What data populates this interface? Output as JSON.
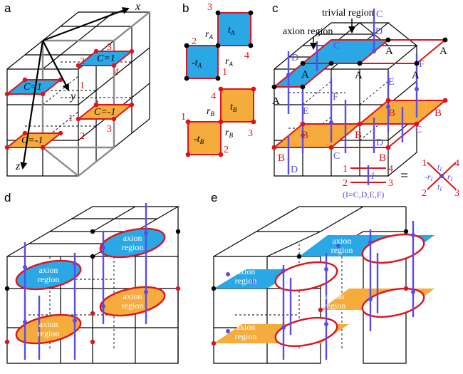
{
  "panels": {
    "a": {
      "label": "a",
      "axes": {
        "x": "x",
        "y": "y",
        "z": "z"
      },
      "chern_top_left": "C=1",
      "chern_top_right": "C=1",
      "chern_bot_left": "C=-1",
      "chern_bot_right": "C=-1",
      "n1": "1",
      "n2": "2",
      "n3": "3",
      "n4": "4"
    },
    "b": {
      "label": "b",
      "tA": "t",
      "tA_sub": "A",
      "mtA": "-t",
      "mtA_sub": "A",
      "rA": "r",
      "rA_sub": "A",
      "tB": "t",
      "tB_sub": "B",
      "mtB": "-t",
      "mtB_sub": "B",
      "rB": "r",
      "rB_sub": "B",
      "n1": "1",
      "n2": "2",
      "n3": "3",
      "n4": "4"
    },
    "c": {
      "label": "c",
      "trivial_region": "trivial region",
      "axion_region": "axion region",
      "A": "A",
      "B": "B",
      "C": "C",
      "D": "D",
      "E": "E",
      "F": "F",
      "legend_I": "I",
      "legend_set": "(I=C,D,E,F)",
      "equals": "=",
      "legend_t": "t",
      "legend_r": "r",
      "legend_mr": "-r",
      "legend_sub": "I",
      "n1": "1",
      "n2": "2",
      "n3": "3",
      "n4": "4"
    },
    "d": {
      "label": "d",
      "region_line1": "axion",
      "region_line2": "region"
    },
    "e": {
      "label": "e",
      "region_line1": "axion",
      "region_line2": "region"
    }
  },
  "colors": {
    "blue_plaquette": "#2aa8e6",
    "orange_plaquette": "#f5ac3c",
    "red_edge": "#e0121c",
    "violet_line": "#5a4ce6",
    "cube_edge": "#000000",
    "gray_edge": "#8a8a8a"
  }
}
